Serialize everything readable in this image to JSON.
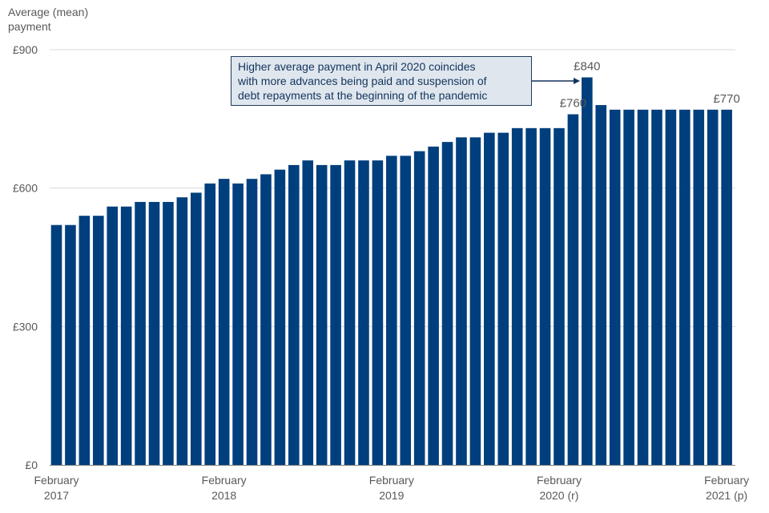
{
  "chart_data": {
    "type": "bar",
    "ylabel_lines": [
      "Average (mean)",
      "payment"
    ],
    "ylim": [
      0,
      900
    ],
    "yticks": [
      {
        "value": 0,
        "label": "£0"
      },
      {
        "value": 300,
        "label": "£300"
      },
      {
        "value": 600,
        "label": "£600"
      },
      {
        "value": 900,
        "label": "£900"
      }
    ],
    "grid": true,
    "bar_color": "#003f7d",
    "values": [
      520,
      520,
      540,
      540,
      560,
      560,
      570,
      570,
      570,
      580,
      590,
      610,
      620,
      610,
      620,
      630,
      640,
      650,
      660,
      650,
      650,
      660,
      660,
      660,
      670,
      670,
      680,
      690,
      700,
      710,
      710,
      720,
      720,
      730,
      730,
      730,
      730,
      760,
      840,
      780,
      770,
      770,
      770,
      770,
      770,
      770,
      770,
      770,
      770
    ],
    "xtick_labels": [
      {
        "index": 0,
        "line1": "February",
        "line2": "2017"
      },
      {
        "index": 12,
        "line1": "February",
        "line2": "2018"
      },
      {
        "index": 24,
        "line1": "February",
        "line2": "2019"
      },
      {
        "index": 36,
        "line1": "February",
        "line2": "2020 (r)"
      },
      {
        "index": 48,
        "line1": "February",
        "line2": "2021 (p)"
      }
    ],
    "data_labels": [
      {
        "index": 37,
        "label": "£760"
      },
      {
        "index": 38,
        "label": "£840"
      },
      {
        "index": 48,
        "label": "£770"
      }
    ],
    "annotation": {
      "lines": [
        "Higher average payment in April 2020 coincides",
        "with more advances being paid and suspension of",
        "debt repayments at the beginning of the pandemic"
      ],
      "points_to_index": 38
    }
  }
}
